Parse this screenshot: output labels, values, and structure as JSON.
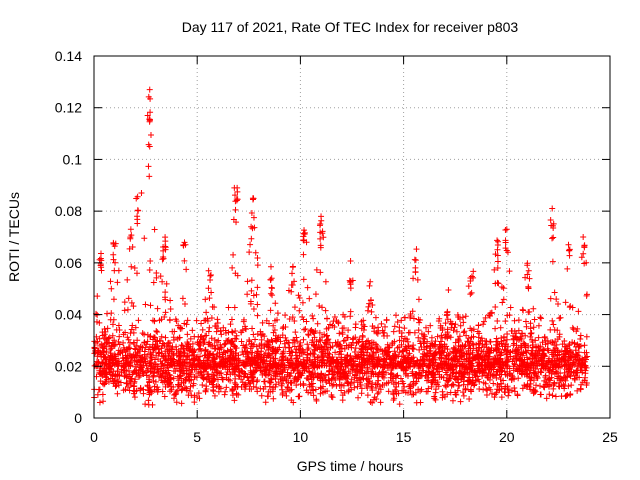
{
  "chart_data": {
    "type": "scatter",
    "title": "Day 117 of 2021, Rate Of TEC Index for receiver p803",
    "xlabel": "GPS time / hours",
    "ylabel": "ROTI / TECUs",
    "xlim": [
      0,
      25
    ],
    "ylim": [
      0,
      0.14
    ],
    "xticks": [
      0,
      5,
      10,
      15,
      20,
      25
    ],
    "yticks": [
      0,
      0.02,
      0.04,
      0.06,
      0.08,
      0.1,
      0.12,
      0.14
    ],
    "xtick_labels": [
      "0",
      "5",
      "10",
      "15",
      "20",
      "25"
    ],
    "ytick_labels": [
      "0",
      "0.02",
      "0.04",
      "0.06",
      "0.08",
      "0.1",
      "0.12",
      "0.14"
    ],
    "grid": true,
    "marker": "+",
    "color": "#ff0000",
    "x_range_data": [
      0,
      23.9
    ],
    "notable_points": [
      {
        "x": 2.7,
        "y": 0.127
      },
      {
        "x": 2.6,
        "y": 0.117
      },
      {
        "x": 2.7,
        "y": 0.105
      },
      {
        "x": 2.3,
        "y": 0.087
      },
      {
        "x": 6.8,
        "y": 0.089
      },
      {
        "x": 7.7,
        "y": 0.085
      },
      {
        "x": 11.0,
        "y": 0.078
      },
      {
        "x": 22.2,
        "y": 0.081
      },
      {
        "x": 20.0,
        "y": 0.073
      },
      {
        "x": 23.7,
        "y": 0.07
      }
    ],
    "peaks": [
      {
        "x": 0.3,
        "y": 0.068
      },
      {
        "x": 1.0,
        "y": 0.072
      },
      {
        "x": 1.8,
        "y": 0.075
      },
      {
        "x": 2.1,
        "y": 0.087
      },
      {
        "x": 2.7,
        "y": 0.127
      },
      {
        "x": 3.4,
        "y": 0.07
      },
      {
        "x": 4.4,
        "y": 0.068
      },
      {
        "x": 5.6,
        "y": 0.057
      },
      {
        "x": 6.9,
        "y": 0.089
      },
      {
        "x": 7.7,
        "y": 0.085
      },
      {
        "x": 8.6,
        "y": 0.059
      },
      {
        "x": 9.6,
        "y": 0.06
      },
      {
        "x": 10.2,
        "y": 0.074
      },
      {
        "x": 11.0,
        "y": 0.078
      },
      {
        "x": 12.4,
        "y": 0.062
      },
      {
        "x": 13.4,
        "y": 0.053
      },
      {
        "x": 15.6,
        "y": 0.066
      },
      {
        "x": 17.1,
        "y": 0.05
      },
      {
        "x": 18.3,
        "y": 0.057
      },
      {
        "x": 19.5,
        "y": 0.069
      },
      {
        "x": 20.0,
        "y": 0.073
      },
      {
        "x": 21.0,
        "y": 0.062
      },
      {
        "x": 22.2,
        "y": 0.081
      },
      {
        "x": 23.0,
        "y": 0.068
      },
      {
        "x": 23.7,
        "y": 0.07
      }
    ],
    "baseline_typical": 0.02,
    "baseline_min": 0.005
  }
}
